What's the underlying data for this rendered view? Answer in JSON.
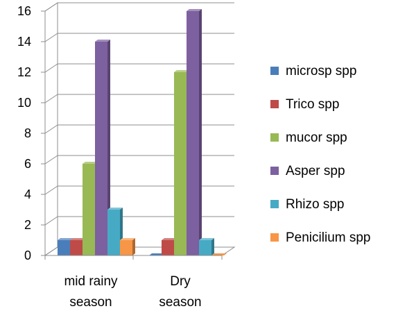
{
  "chart_data": {
    "type": "bar",
    "style": "3d-clustered-column",
    "categories": [
      [
        "mid rainy",
        "season"
      ],
      [
        "Dry",
        "season"
      ]
    ],
    "series": [
      {
        "name": "microsp spp",
        "color": "#4a7ebb",
        "values": [
          1,
          0
        ]
      },
      {
        "name": "Trico spp",
        "color": "#be4b48",
        "values": [
          1,
          1
        ]
      },
      {
        "name": "mucor spp",
        "color": "#98b954",
        "values": [
          6,
          12
        ]
      },
      {
        "name": "Asper spp",
        "color": "#7d60a0",
        "values": [
          14,
          16
        ]
      },
      {
        "name": "Rhizo spp",
        "color": "#46aac5",
        "values": [
          3,
          1
        ]
      },
      {
        "name": "Penicilium spp",
        "color": "#f79646",
        "values": [
          1,
          0
        ]
      }
    ],
    "ylim": [
      0,
      16
    ],
    "yticks": [
      "0",
      "2",
      "4",
      "6",
      "8",
      "10",
      "12",
      "14",
      "16"
    ],
    "grid": true,
    "legend": "right"
  }
}
